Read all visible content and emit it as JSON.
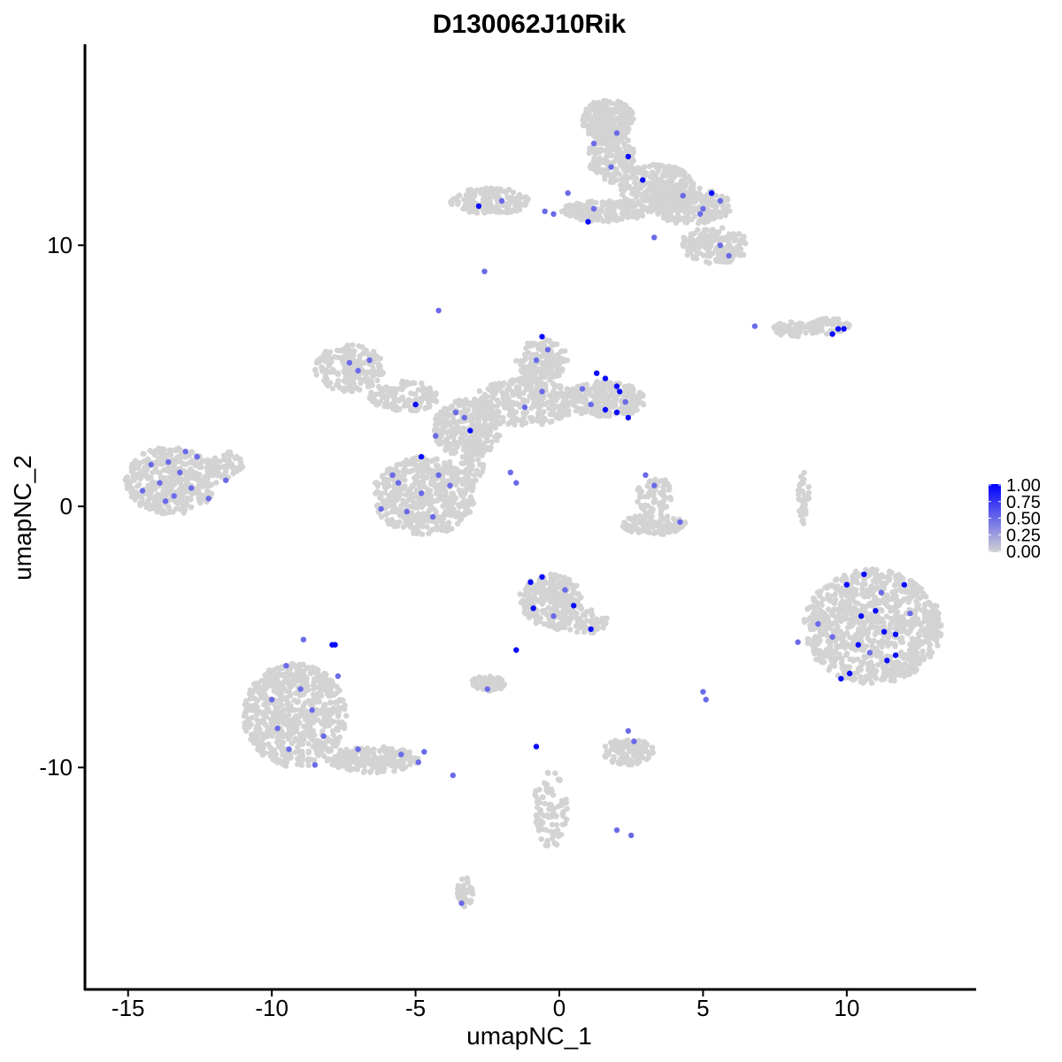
{
  "chart_data": {
    "type": "scatter",
    "title": "D130062J10Rik",
    "xlabel": "umapNC_1",
    "ylabel": "umapNC_2",
    "xlim": [
      -16.5,
      14.5
    ],
    "ylim": [
      -18.5,
      17.7
    ],
    "x_ticks": [
      -15,
      -10,
      -5,
      0,
      5,
      10
    ],
    "y_ticks": [
      -10,
      0,
      10
    ],
    "x_tick_labels": [
      "-15",
      "-10",
      "-5",
      "0",
      "5",
      "10"
    ],
    "y_tick_labels": [
      "-10",
      "0",
      "10"
    ],
    "colorscale": {
      "low": "#d3d3d3",
      "high": "#0000ff",
      "min": 0,
      "max": 1
    },
    "legend": {
      "position": "right",
      "ticks": [
        1.0,
        0.75,
        0.5,
        0.25,
        0.0
      ],
      "tick_labels": [
        "1.00",
        "0.75",
        "0.50",
        "0.25",
        "0.00"
      ]
    },
    "background_clusters": [
      {
        "cx": -13.5,
        "cy": 1.0,
        "rx": 1.6,
        "ry": 1.3,
        "n": 420
      },
      {
        "cx": -11.6,
        "cy": 1.6,
        "rx": 0.6,
        "ry": 0.5,
        "n": 60
      },
      {
        "cx": -4.7,
        "cy": 0.4,
        "rx": 1.8,
        "ry": 1.5,
        "n": 520
      },
      {
        "cx": -7.3,
        "cy": 5.3,
        "rx": 1.2,
        "ry": 0.9,
        "n": 180
      },
      {
        "cx": -5.4,
        "cy": 4.2,
        "rx": 1.2,
        "ry": 0.6,
        "n": 140
      },
      {
        "cx": -3.2,
        "cy": 3.0,
        "rx": 1.2,
        "ry": 1.1,
        "n": 260
      },
      {
        "cx": -3.0,
        "cy": 1.8,
        "rx": 0.4,
        "ry": 0.9,
        "n": 70
      },
      {
        "cx": -1.2,
        "cy": 4.0,
        "rx": 1.8,
        "ry": 0.9,
        "n": 300
      },
      {
        "cx": -0.6,
        "cy": 5.6,
        "rx": 0.9,
        "ry": 0.8,
        "n": 150
      },
      {
        "cx": 1.6,
        "cy": 4.1,
        "rx": 1.4,
        "ry": 0.7,
        "n": 240
      },
      {
        "cx": 3.3,
        "cy": 0.4,
        "rx": 0.6,
        "ry": 0.8,
        "n": 70
      },
      {
        "cx": 3.3,
        "cy": -0.7,
        "rx": 1.1,
        "ry": 0.4,
        "n": 110
      },
      {
        "cx": 1.7,
        "cy": 14.8,
        "rx": 0.9,
        "ry": 0.8,
        "n": 220
      },
      {
        "cx": 1.8,
        "cy": 13.4,
        "rx": 0.8,
        "ry": 1.0,
        "n": 180
      },
      {
        "cx": 3.4,
        "cy": 12.2,
        "rx": 1.3,
        "ry": 0.9,
        "n": 260
      },
      {
        "cx": 4.6,
        "cy": 11.5,
        "rx": 1.4,
        "ry": 0.7,
        "n": 220
      },
      {
        "cx": 5.4,
        "cy": 10.0,
        "rx": 1.2,
        "ry": 0.7,
        "n": 170
      },
      {
        "cx": 1.6,
        "cy": 11.3,
        "rx": 1.6,
        "ry": 0.4,
        "n": 170
      },
      {
        "cx": -2.4,
        "cy": 11.7,
        "rx": 1.4,
        "ry": 0.5,
        "n": 160
      },
      {
        "cx": 8.2,
        "cy": 6.8,
        "rx": 0.8,
        "ry": 0.3,
        "n": 70
      },
      {
        "cx": 9.4,
        "cy": 6.9,
        "rx": 0.7,
        "ry": 0.3,
        "n": 60
      },
      {
        "cx": 10.9,
        "cy": -4.6,
        "rx": 2.4,
        "ry": 2.2,
        "n": 900
      },
      {
        "cx": -0.3,
        "cy": -3.6,
        "rx": 1.1,
        "ry": 1.0,
        "n": 220
      },
      {
        "cx": 0.7,
        "cy": -4.4,
        "rx": 1.0,
        "ry": 0.5,
        "n": 90
      },
      {
        "cx": -9.2,
        "cy": -8.0,
        "rx": 1.8,
        "ry": 2.0,
        "n": 680
      },
      {
        "cx": -6.5,
        "cy": -9.7,
        "rx": 1.6,
        "ry": 0.5,
        "n": 200
      },
      {
        "cx": -2.5,
        "cy": -6.8,
        "rx": 0.6,
        "ry": 0.3,
        "n": 60
      },
      {
        "cx": 2.4,
        "cy": -9.4,
        "rx": 0.9,
        "ry": 0.5,
        "n": 120
      },
      {
        "cx": -0.3,
        "cy": -11.6,
        "rx": 0.6,
        "ry": 1.5,
        "n": 90
      },
      {
        "cx": -3.3,
        "cy": -14.8,
        "rx": 0.3,
        "ry": 0.6,
        "n": 40
      },
      {
        "cx": 8.5,
        "cy": 0.3,
        "rx": 0.2,
        "ry": 1.0,
        "n": 40
      }
    ],
    "expressing_cells": [
      {
        "x": -14.2,
        "y": 1.6,
        "v": 0.5
      },
      {
        "x": -13.9,
        "y": 0.9,
        "v": 0.5
      },
      {
        "x": -13.6,
        "y": 1.7,
        "v": 0.5
      },
      {
        "x": -13.4,
        "y": 0.4,
        "v": 0.5
      },
      {
        "x": -13.2,
        "y": 1.3,
        "v": 0.5
      },
      {
        "x": -13.0,
        "y": 2.1,
        "v": 0.5
      },
      {
        "x": -12.8,
        "y": 0.7,
        "v": 0.5
      },
      {
        "x": -14.5,
        "y": 0.6,
        "v": 0.5
      },
      {
        "x": -12.6,
        "y": 1.9,
        "v": 0.5
      },
      {
        "x": -12.2,
        "y": 0.3,
        "v": 0.5
      },
      {
        "x": -13.7,
        "y": 0.2,
        "v": 0.5
      },
      {
        "x": -11.6,
        "y": 1.0,
        "v": 0.5
      },
      {
        "x": -7.3,
        "y": 5.5,
        "v": 0.5
      },
      {
        "x": -7.0,
        "y": 5.2,
        "v": 0.5
      },
      {
        "x": -6.6,
        "y": 5.6,
        "v": 0.5
      },
      {
        "x": -5.0,
        "y": 3.9,
        "v": 0.95
      },
      {
        "x": -4.8,
        "y": 1.9,
        "v": 0.95
      },
      {
        "x": -3.1,
        "y": 2.9,
        "v": 0.95
      },
      {
        "x": -3.6,
        "y": 3.6,
        "v": 0.5
      },
      {
        "x": -3.3,
        "y": 3.4,
        "v": 0.5
      },
      {
        "x": -4.3,
        "y": 2.7,
        "v": 0.5
      },
      {
        "x": -5.6,
        "y": 0.9,
        "v": 0.5
      },
      {
        "x": -5.3,
        "y": -0.2,
        "v": 0.5
      },
      {
        "x": -4.8,
        "y": 0.5,
        "v": 0.5
      },
      {
        "x": -4.4,
        "y": -0.4,
        "v": 0.5
      },
      {
        "x": -4.2,
        "y": 1.2,
        "v": 0.5
      },
      {
        "x": -6.2,
        "y": -0.1,
        "v": 0.5
      },
      {
        "x": -5.8,
        "y": 1.2,
        "v": 0.5
      },
      {
        "x": -3.8,
        "y": 0.8,
        "v": 0.5
      },
      {
        "x": -4.2,
        "y": 7.5,
        "v": 0.5
      },
      {
        "x": -1.7,
        "y": 1.3,
        "v": 0.5
      },
      {
        "x": -1.5,
        "y": 0.9,
        "v": 0.5
      },
      {
        "x": -1.2,
        "y": 3.8,
        "v": 0.5
      },
      {
        "x": -0.8,
        "y": 5.6,
        "v": 0.5
      },
      {
        "x": -0.6,
        "y": 4.4,
        "v": 0.5
      },
      {
        "x": -0.4,
        "y": 6.0,
        "v": 0.5
      },
      {
        "x": 1.3,
        "y": 5.1,
        "v": 0.95
      },
      {
        "x": 1.6,
        "y": 4.9,
        "v": 0.95
      },
      {
        "x": 2.0,
        "y": 4.6,
        "v": 0.95
      },
      {
        "x": 2.1,
        "y": 4.4,
        "v": 0.95
      },
      {
        "x": 1.6,
        "y": 3.7,
        "v": 0.95
      },
      {
        "x": 2.0,
        "y": 3.6,
        "v": 0.95
      },
      {
        "x": 2.4,
        "y": 3.4,
        "v": 0.95
      },
      {
        "x": 0.8,
        "y": 4.5,
        "v": 0.5
      },
      {
        "x": 1.1,
        "y": 3.9,
        "v": 0.5
      },
      {
        "x": 2.3,
        "y": 4.0,
        "v": 0.5
      },
      {
        "x": -0.6,
        "y": 6.5,
        "v": 0.95
      },
      {
        "x": 3.0,
        "y": 1.2,
        "v": 0.5
      },
      {
        "x": 3.3,
        "y": 0.8,
        "v": 0.5
      },
      {
        "x": 4.2,
        "y": -0.6,
        "v": 0.5
      },
      {
        "x": 2.0,
        "y": 14.3,
        "v": 0.5
      },
      {
        "x": 1.2,
        "y": 13.9,
        "v": 0.5
      },
      {
        "x": 2.4,
        "y": 13.4,
        "v": 0.95
      },
      {
        "x": 1.8,
        "y": 13.0,
        "v": 0.5
      },
      {
        "x": 2.9,
        "y": 12.5,
        "v": 0.95
      },
      {
        "x": 4.3,
        "y": 11.9,
        "v": 0.5
      },
      {
        "x": 5.3,
        "y": 12.0,
        "v": 0.95
      },
      {
        "x": 4.9,
        "y": 11.2,
        "v": 0.5
      },
      {
        "x": 5.6,
        "y": 11.7,
        "v": 0.5
      },
      {
        "x": 5.0,
        "y": 11.4,
        "v": 0.5
      },
      {
        "x": 5.6,
        "y": 10.0,
        "v": 0.5
      },
      {
        "x": 5.9,
        "y": 9.6,
        "v": 0.5
      },
      {
        "x": 3.3,
        "y": 10.3,
        "v": 0.5
      },
      {
        "x": 1.2,
        "y": 11.4,
        "v": 0.5
      },
      {
        "x": 1.0,
        "y": 10.9,
        "v": 0.95
      },
      {
        "x": -0.2,
        "y": 11.2,
        "v": 0.5
      },
      {
        "x": 0.3,
        "y": 12.0,
        "v": 0.5
      },
      {
        "x": -2.8,
        "y": 11.5,
        "v": 0.95
      },
      {
        "x": -2.0,
        "y": 11.7,
        "v": 0.5
      },
      {
        "x": -2.6,
        "y": 9.0,
        "v": 0.5
      },
      {
        "x": -0.5,
        "y": 11.3,
        "v": 0.5
      },
      {
        "x": 9.7,
        "y": 6.8,
        "v": 0.95
      },
      {
        "x": 9.9,
        "y": 6.8,
        "v": 0.95
      },
      {
        "x": 9.5,
        "y": 6.6,
        "v": 0.95
      },
      {
        "x": 6.8,
        "y": 6.9,
        "v": 0.5
      },
      {
        "x": 10.0,
        "y": -3.0,
        "v": 0.95
      },
      {
        "x": 10.5,
        "y": -4.2,
        "v": 0.95
      },
      {
        "x": 11.0,
        "y": -4.0,
        "v": 0.95
      },
      {
        "x": 11.3,
        "y": -4.8,
        "v": 0.95
      },
      {
        "x": 10.4,
        "y": -5.3,
        "v": 0.95
      },
      {
        "x": 11.7,
        "y": -4.9,
        "v": 0.95
      },
      {
        "x": 11.4,
        "y": -5.9,
        "v": 0.95
      },
      {
        "x": 9.8,
        "y": -6.6,
        "v": 0.95
      },
      {
        "x": 10.1,
        "y": -6.4,
        "v": 0.95
      },
      {
        "x": 11.7,
        "y": -5.7,
        "v": 0.95
      },
      {
        "x": 12.0,
        "y": -3.0,
        "v": 0.95
      },
      {
        "x": 10.6,
        "y": -2.6,
        "v": 0.95
      },
      {
        "x": 9.0,
        "y": -4.5,
        "v": 0.5
      },
      {
        "x": 9.5,
        "y": -5.0,
        "v": 0.5
      },
      {
        "x": 11.2,
        "y": -3.3,
        "v": 0.5
      },
      {
        "x": 10.8,
        "y": -5.6,
        "v": 0.5
      },
      {
        "x": 8.3,
        "y": -5.2,
        "v": 0.5
      },
      {
        "x": 12.2,
        "y": -4.1,
        "v": 0.5
      },
      {
        "x": -1.0,
        "y": -2.9,
        "v": 0.95
      },
      {
        "x": -0.6,
        "y": -2.7,
        "v": 0.95
      },
      {
        "x": -0.9,
        "y": -3.9,
        "v": 0.95
      },
      {
        "x": 0.5,
        "y": -3.8,
        "v": 0.95
      },
      {
        "x": 1.1,
        "y": -4.7,
        "v": 0.95
      },
      {
        "x": -1.5,
        "y": -5.5,
        "v": 0.95
      },
      {
        "x": -0.2,
        "y": -4.2,
        "v": 0.5
      },
      {
        "x": 0.2,
        "y": -3.2,
        "v": 0.5
      },
      {
        "x": -7.8,
        "y": -5.3,
        "v": 0.95
      },
      {
        "x": -7.9,
        "y": -5.3,
        "v": 0.95
      },
      {
        "x": -9.5,
        "y": -6.1,
        "v": 0.5
      },
      {
        "x": -9.0,
        "y": -7.0,
        "v": 0.5
      },
      {
        "x": -8.6,
        "y": -7.8,
        "v": 0.5
      },
      {
        "x": -9.8,
        "y": -8.5,
        "v": 0.5
      },
      {
        "x": -8.2,
        "y": -8.8,
        "v": 0.5
      },
      {
        "x": -9.4,
        "y": -9.3,
        "v": 0.5
      },
      {
        "x": -8.9,
        "y": -5.1,
        "v": 0.5
      },
      {
        "x": -7.7,
        "y": -6.5,
        "v": 0.5
      },
      {
        "x": -10.0,
        "y": -7.4,
        "v": 0.5
      },
      {
        "x": -8.5,
        "y": -9.9,
        "v": 0.5
      },
      {
        "x": -7.0,
        "y": -9.3,
        "v": 0.5
      },
      {
        "x": -5.5,
        "y": -9.5,
        "v": 0.5
      },
      {
        "x": -4.9,
        "y": -9.8,
        "v": 0.5
      },
      {
        "x": -4.7,
        "y": -9.4,
        "v": 0.5
      },
      {
        "x": -3.7,
        "y": -10.3,
        "v": 0.5
      },
      {
        "x": 5.1,
        "y": -7.4,
        "v": 0.5
      },
      {
        "x": 5.0,
        "y": -7.1,
        "v": 0.5
      },
      {
        "x": -0.8,
        "y": -9.2,
        "v": 0.95
      },
      {
        "x": 2.6,
        "y": -9.0,
        "v": 0.5
      },
      {
        "x": 2.4,
        "y": -8.6,
        "v": 0.5
      },
      {
        "x": -3.4,
        "y": -15.2,
        "v": 0.5
      },
      {
        "x": -2.5,
        "y": -7.0,
        "v": 0.5
      },
      {
        "x": 2.5,
        "y": -12.6,
        "v": 0.5
      },
      {
        "x": 2.0,
        "y": -12.4,
        "v": 0.5
      }
    ]
  }
}
